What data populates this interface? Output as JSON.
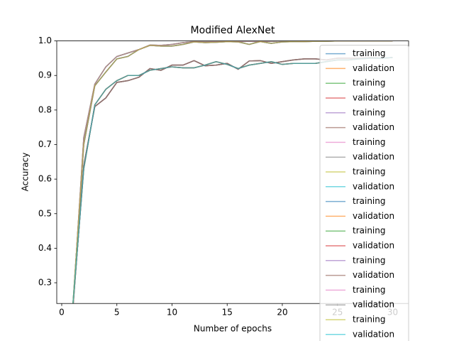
{
  "chart_data": {
    "type": "line",
    "title": "Modified AlexNet",
    "x_label": "Number of epochs",
    "y_label": "Accuracy",
    "x": [
      1,
      2,
      3,
      4,
      5,
      6,
      7,
      8,
      9,
      10,
      11,
      12,
      13,
      14,
      15,
      16,
      17,
      18,
      19,
      20,
      21,
      22,
      23,
      24,
      25,
      26,
      27,
      28,
      29,
      30
    ],
    "xlim": [
      -0.45,
      31.45
    ],
    "xticks": [
      0,
      5,
      10,
      15,
      20,
      25,
      30
    ],
    "ylim": [
      0.24,
      1.0
    ],
    "yticks": [
      0.3,
      0.4,
      0.5,
      0.6,
      0.7,
      0.8,
      0.9,
      {
        "value": 1,
        "label": "1.0"
      }
    ],
    "grid": false,
    "legend": "upper right",
    "series": [
      {
        "name": "training",
        "color": "#1f77b4",
        "values": [
          0.22,
          0.72,
          0.875,
          0.925,
          0.955,
          0.965,
          0.975,
          0.988,
          0.987,
          0.99,
          0.995,
          0.998,
          0.997,
          0.998,
          0.999,
          0.998,
          0.999,
          0.998,
          0.999,
          1.0,
          1.0,
          0.999,
          1.0,
          1.0,
          1.0,
          1.0,
          1.0,
          1.0,
          1.0,
          1.0
        ]
      },
      {
        "name": "validation",
        "color": "#ff7f0e",
        "values": [
          0.22,
          0.64,
          0.81,
          0.835,
          0.88,
          0.885,
          0.895,
          0.92,
          0.915,
          0.93,
          0.93,
          0.943,
          0.928,
          0.93,
          0.935,
          0.918,
          0.942,
          0.943,
          0.935,
          0.94,
          0.945,
          0.948,
          0.948,
          0.945,
          0.95,
          0.95,
          0.95,
          0.952,
          0.95,
          0.952
        ]
      },
      {
        "name": "training",
        "color": "#2ca02c",
        "values": [
          0.23,
          0.7,
          0.87,
          0.91,
          0.948,
          0.955,
          0.975,
          0.987,
          0.985,
          0.985,
          0.99,
          0.997,
          0.995,
          0.996,
          0.998,
          0.997,
          0.99,
          0.998,
          0.993,
          0.997,
          0.998,
          0.998,
          0.999,
          0.999,
          1.0,
          1.0,
          1.0,
          1.0,
          1.0,
          1.0
        ]
      },
      {
        "name": "validation",
        "color": "#d62728",
        "values": [
          0.23,
          0.63,
          0.815,
          0.86,
          0.885,
          0.9,
          0.9,
          0.915,
          0.92,
          0.925,
          0.922,
          0.922,
          0.93,
          0.94,
          0.932,
          0.92,
          0.93,
          0.935,
          0.94,
          0.932,
          0.935,
          0.935,
          0.935,
          0.94,
          0.945,
          0.945,
          0.948,
          0.95,
          0.95,
          0.952
        ]
      },
      {
        "name": "training",
        "color": "#9467bd",
        "values": [
          0.22,
          0.72,
          0.875,
          0.925,
          0.955,
          0.965,
          0.975,
          0.988,
          0.987,
          0.99,
          0.995,
          0.998,
          0.997,
          0.998,
          0.999,
          0.998,
          0.999,
          0.998,
          0.999,
          1.0,
          1.0,
          0.999,
          1.0,
          1.0,
          1.0,
          1.0,
          1.0,
          1.0,
          1.0,
          1.0
        ]
      },
      {
        "name": "validation",
        "color": "#8c564b",
        "values": [
          0.22,
          0.64,
          0.81,
          0.835,
          0.88,
          0.885,
          0.895,
          0.92,
          0.915,
          0.93,
          0.93,
          0.943,
          0.928,
          0.93,
          0.935,
          0.918,
          0.942,
          0.943,
          0.935,
          0.94,
          0.945,
          0.948,
          0.948,
          0.945,
          0.95,
          0.95,
          0.95,
          0.952,
          0.95,
          0.952
        ]
      },
      {
        "name": "training",
        "color": "#e377c2",
        "values": [
          0.23,
          0.7,
          0.87,
          0.91,
          0.948,
          0.955,
          0.975,
          0.987,
          0.985,
          0.985,
          0.99,
          0.997,
          0.995,
          0.996,
          0.998,
          0.997,
          0.99,
          0.998,
          0.993,
          0.997,
          0.998,
          0.998,
          0.999,
          0.999,
          1.0,
          1.0,
          1.0,
          1.0,
          1.0,
          1.0
        ]
      },
      {
        "name": "validation",
        "color": "#7f7f7f",
        "values": [
          0.23,
          0.63,
          0.815,
          0.86,
          0.885,
          0.9,
          0.9,
          0.915,
          0.92,
          0.925,
          0.922,
          0.922,
          0.93,
          0.94,
          0.932,
          0.92,
          0.93,
          0.935,
          0.94,
          0.932,
          0.935,
          0.935,
          0.935,
          0.94,
          0.945,
          0.945,
          0.948,
          0.95,
          0.95,
          0.952
        ]
      },
      {
        "name": "training",
        "color": "#bcbd22",
        "values": [
          0.22,
          0.72,
          0.875,
          0.925,
          0.955,
          0.965,
          0.975,
          0.988,
          0.987,
          0.99,
          0.995,
          0.998,
          0.997,
          0.998,
          0.999,
          0.998,
          0.999,
          0.998,
          0.999,
          1.0,
          1.0,
          0.999,
          1.0,
          1.0,
          1.0,
          1.0,
          1.0,
          1.0,
          1.0,
          1.0
        ]
      },
      {
        "name": "validation",
        "color": "#17becf",
        "values": [
          0.22,
          0.64,
          0.81,
          0.835,
          0.88,
          0.885,
          0.895,
          0.92,
          0.915,
          0.93,
          0.93,
          0.943,
          0.928,
          0.93,
          0.935,
          0.918,
          0.942,
          0.943,
          0.935,
          0.94,
          0.945,
          0.948,
          0.948,
          0.945,
          0.95,
          0.95,
          0.95,
          0.952,
          0.95,
          0.952
        ]
      },
      {
        "name": "training",
        "color": "#1f77b4",
        "values": [
          0.23,
          0.7,
          0.87,
          0.91,
          0.948,
          0.955,
          0.975,
          0.987,
          0.985,
          0.985,
          0.99,
          0.997,
          0.995,
          0.996,
          0.998,
          0.997,
          0.99,
          0.998,
          0.993,
          0.997,
          0.998,
          0.998,
          0.999,
          0.999,
          1.0,
          1.0,
          1.0,
          1.0,
          1.0,
          1.0
        ]
      },
      {
        "name": "validation",
        "color": "#ff7f0e",
        "values": [
          0.23,
          0.63,
          0.815,
          0.86,
          0.885,
          0.9,
          0.9,
          0.915,
          0.92,
          0.925,
          0.922,
          0.922,
          0.93,
          0.94,
          0.932,
          0.92,
          0.93,
          0.935,
          0.94,
          0.932,
          0.935,
          0.935,
          0.935,
          0.94,
          0.945,
          0.945,
          0.948,
          0.95,
          0.95,
          0.952
        ]
      },
      {
        "name": "training",
        "color": "#2ca02c",
        "values": [
          0.22,
          0.72,
          0.875,
          0.925,
          0.955,
          0.965,
          0.975,
          0.988,
          0.987,
          0.99,
          0.995,
          0.998,
          0.997,
          0.998,
          0.999,
          0.998,
          0.999,
          0.998,
          0.999,
          1.0,
          1.0,
          0.999,
          1.0,
          1.0,
          1.0,
          1.0,
          1.0,
          1.0,
          1.0,
          1.0
        ]
      },
      {
        "name": "validation",
        "color": "#d62728",
        "values": [
          0.22,
          0.64,
          0.81,
          0.835,
          0.88,
          0.885,
          0.895,
          0.92,
          0.915,
          0.93,
          0.93,
          0.943,
          0.928,
          0.93,
          0.935,
          0.918,
          0.942,
          0.943,
          0.935,
          0.94,
          0.945,
          0.948,
          0.948,
          0.945,
          0.95,
          0.95,
          0.95,
          0.952,
          0.95,
          0.952
        ]
      },
      {
        "name": "training",
        "color": "#9467bd",
        "values": [
          0.23,
          0.7,
          0.87,
          0.91,
          0.948,
          0.955,
          0.975,
          0.987,
          0.985,
          0.985,
          0.99,
          0.997,
          0.995,
          0.996,
          0.998,
          0.997,
          0.99,
          0.998,
          0.993,
          0.997,
          0.998,
          0.998,
          0.999,
          0.999,
          1.0,
          1.0,
          1.0,
          1.0,
          1.0,
          1.0
        ]
      },
      {
        "name": "validation",
        "color": "#8c564b",
        "values": [
          0.23,
          0.63,
          0.815,
          0.86,
          0.885,
          0.9,
          0.9,
          0.915,
          0.92,
          0.925,
          0.922,
          0.922,
          0.93,
          0.94,
          0.932,
          0.92,
          0.93,
          0.935,
          0.94,
          0.932,
          0.935,
          0.935,
          0.935,
          0.94,
          0.945,
          0.945,
          0.948,
          0.95,
          0.95,
          0.952
        ]
      },
      {
        "name": "training",
        "color": "#e377c2",
        "values": [
          0.22,
          0.72,
          0.875,
          0.925,
          0.955,
          0.965,
          0.975,
          0.988,
          0.987,
          0.99,
          0.995,
          0.998,
          0.997,
          0.998,
          0.999,
          0.998,
          0.999,
          0.998,
          0.999,
          1.0,
          1.0,
          0.999,
          1.0,
          1.0,
          1.0,
          1.0,
          1.0,
          1.0,
          1.0,
          1.0
        ]
      },
      {
        "name": "validation",
        "color": "#7f7f7f",
        "values": [
          0.22,
          0.64,
          0.81,
          0.835,
          0.88,
          0.885,
          0.895,
          0.92,
          0.915,
          0.93,
          0.93,
          0.943,
          0.928,
          0.93,
          0.935,
          0.918,
          0.942,
          0.943,
          0.935,
          0.94,
          0.945,
          0.948,
          0.948,
          0.945,
          0.95,
          0.95,
          0.95,
          0.952,
          0.95,
          0.952
        ]
      },
      {
        "name": "training",
        "color": "#bcbd22",
        "values": [
          0.23,
          0.7,
          0.87,
          0.91,
          0.948,
          0.955,
          0.975,
          0.987,
          0.985,
          0.985,
          0.99,
          0.997,
          0.995,
          0.996,
          0.998,
          0.997,
          0.99,
          0.998,
          0.993,
          0.997,
          0.998,
          0.998,
          0.999,
          0.999,
          1.0,
          1.0,
          1.0,
          1.0,
          1.0,
          1.0
        ]
      },
      {
        "name": "validation",
        "color": "#17becf",
        "values": [
          0.23,
          0.63,
          0.815,
          0.86,
          0.885,
          0.9,
          0.9,
          0.915,
          0.92,
          0.925,
          0.922,
          0.922,
          0.93,
          0.94,
          0.932,
          0.92,
          0.93,
          0.935,
          0.94,
          0.932,
          0.935,
          0.935,
          0.935,
          0.94,
          0.945,
          0.945,
          0.948,
          0.95,
          0.95,
          0.952
        ]
      }
    ]
  }
}
